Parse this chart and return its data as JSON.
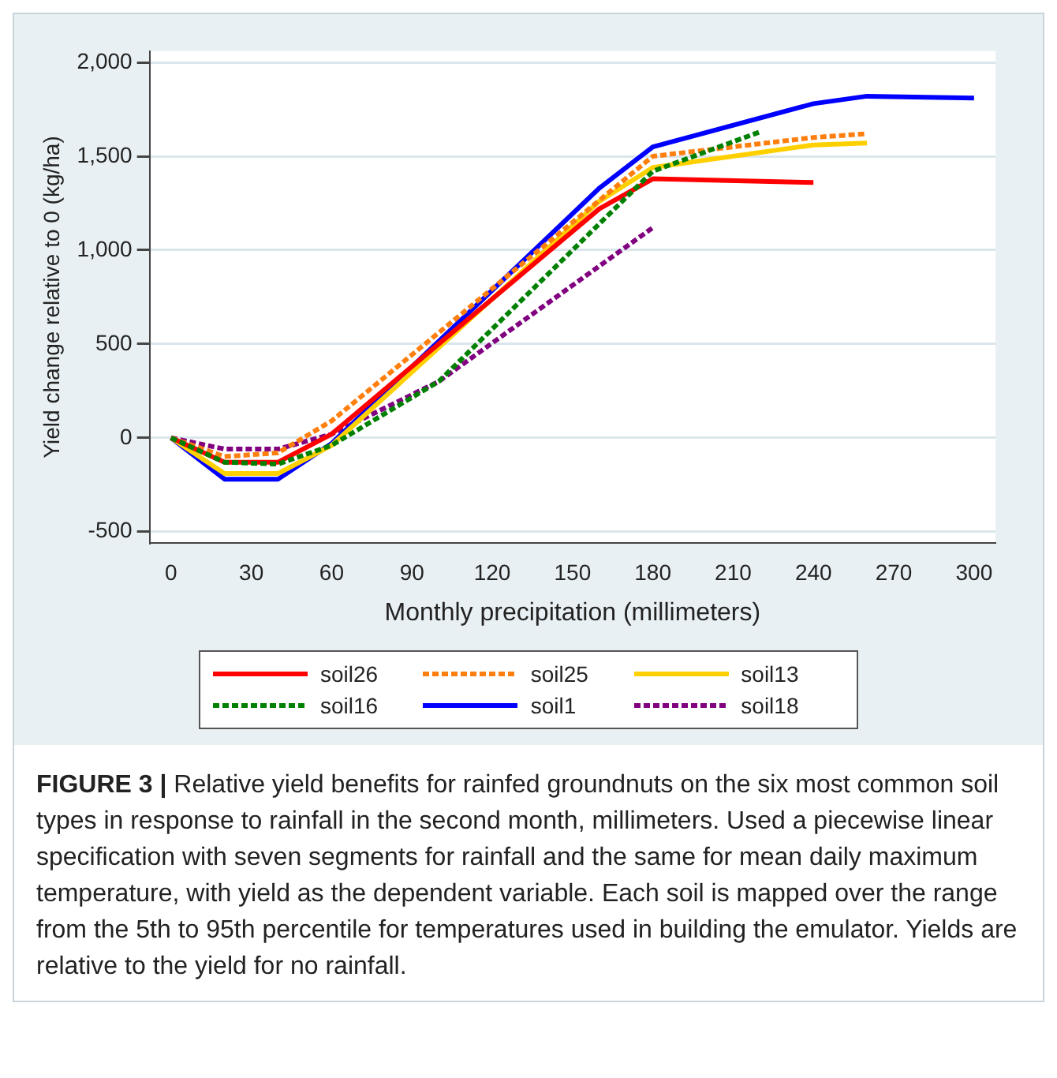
{
  "chart_data": {
    "type": "line",
    "xlabel": "Monthly precipitation (millimeters)",
    "ylabel": "Yield change relative to 0 (kg/ha)",
    "xlim": [
      -8,
      308
    ],
    "xticks": [
      0,
      30,
      60,
      90,
      120,
      150,
      180,
      210,
      240,
      270,
      300
    ],
    "ylim": [
      -560,
      2060
    ],
    "yticks": [
      {
        "value": -500,
        "label": "-500"
      },
      0,
      500,
      {
        "value": 1000,
        "label": "1,000"
      },
      {
        "value": 1500,
        "label": "1,500"
      },
      {
        "value": 2000,
        "label": "2,000"
      }
    ],
    "grid": "y",
    "legend": "bottom",
    "marker": "none",
    "series": [
      {
        "name": "soil26",
        "color": "#ff0000",
        "line_style": "solid",
        "x": [
          0,
          20,
          40,
          60,
          160,
          180,
          240
        ],
        "values": [
          0,
          -130,
          -130,
          20,
          1220,
          1380,
          1360
        ]
      },
      {
        "name": "soil25",
        "color": "#ff7f0e",
        "line_style": "dashed",
        "x": [
          0,
          20,
          40,
          60,
          180,
          240,
          260
        ],
        "values": [
          0,
          -100,
          -80,
          90,
          1500,
          1600,
          1620
        ]
      },
      {
        "name": "soil13",
        "color": "#ffd000",
        "line_style": "solid",
        "x": [
          0,
          20,
          40,
          60,
          160,
          180,
          240,
          260
        ],
        "values": [
          0,
          -190,
          -190,
          -40,
          1260,
          1440,
          1560,
          1570
        ]
      },
      {
        "name": "soil16",
        "color": "#008000",
        "line_style": "dashed",
        "x": [
          0,
          20,
          40,
          60,
          100,
          180,
          220
        ],
        "values": [
          0,
          -130,
          -140,
          -40,
          300,
          1420,
          1630
        ]
      },
      {
        "name": "soil1",
        "color": "#0000ff",
        "line_style": "solid",
        "x": [
          0,
          20,
          40,
          60,
          160,
          180,
          240,
          260,
          300
        ],
        "values": [
          0,
          -220,
          -220,
          -30,
          1330,
          1550,
          1780,
          1820,
          1810
        ]
      },
      {
        "name": "soil18",
        "color": "#800080",
        "line_style": "dashed",
        "x": [
          0,
          20,
          40,
          60,
          100,
          180
        ],
        "values": [
          0,
          -60,
          -60,
          20,
          300,
          1120
        ]
      }
    ],
    "annotations": [
      "FIGURE 3 |",
      "Relative yield benefits for rainfed groundnuts on the six most common soil types in response to rainfall in the second month, millimeters. Used a piecewise linear specification with seven segments for rainfall and the same for mean daily maximum temperature, with yield as the dependent variable. Each soil is mapped over the range from the 5th to 95th percentile for temperatures used in building the emulator. Yields are relative to the yield for no rainfall."
    ]
  }
}
